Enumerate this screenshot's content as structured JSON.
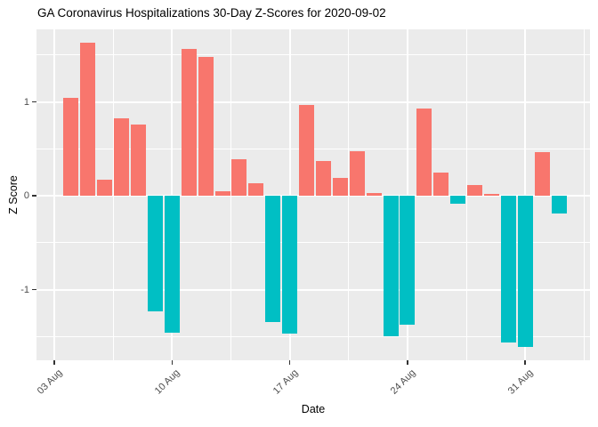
{
  "header": {
    "title": "GA Coronavirus Hospitalizations 30-Day Z-Scores for 2020-09-02"
  },
  "chart_data": {
    "type": "bar",
    "title": "GA Coronavirus Hospitalizations 30-Day Z-Scores for 2020-09-02",
    "xlabel": "Date",
    "ylabel": "Z Score",
    "x": [
      "2020-08-04",
      "2020-08-05",
      "2020-08-06",
      "2020-08-07",
      "2020-08-08",
      "2020-08-09",
      "2020-08-10",
      "2020-08-11",
      "2020-08-12",
      "2020-08-13",
      "2020-08-14",
      "2020-08-15",
      "2020-08-16",
      "2020-08-17",
      "2020-08-18",
      "2020-08-19",
      "2020-08-20",
      "2020-08-21",
      "2020-08-22",
      "2020-08-23",
      "2020-08-24",
      "2020-08-25",
      "2020-08-26",
      "2020-08-27",
      "2020-08-28",
      "2020-08-29",
      "2020-08-30",
      "2020-08-31",
      "2020-09-01",
      "2020-09-02"
    ],
    "values": [
      1.04,
      1.63,
      0.17,
      0.82,
      0.76,
      -1.23,
      -1.46,
      1.56,
      1.48,
      0.05,
      0.39,
      0.13,
      -1.35,
      -1.47,
      0.97,
      0.37,
      0.19,
      0.47,
      0.03,
      -1.5,
      -1.37,
      0.93,
      0.25,
      -0.09,
      0.11,
      0.02,
      -1.56,
      -1.61,
      0.46,
      -0.19
    ],
    "x_tick_labels": [
      "03 Aug",
      "10 Aug",
      "17 Aug",
      "24 Aug",
      "31 Aug"
    ],
    "x_tick_dates": [
      "2020-08-03",
      "2020-08-10",
      "2020-08-17",
      "2020-08-24",
      "2020-08-31"
    ],
    "y_tick_values": [
      -1,
      0,
      1
    ],
    "y_tick_labels": [
      "-1",
      "0",
      "1"
    ],
    "ylim": [
      -1.75,
      1.77
    ],
    "grid": "major and minor, white on gray panel",
    "legend": "none",
    "colors": {
      "positive": "#F8766D",
      "negative": "#00BFC4",
      "panel_background": "#EBEBEB",
      "gridline": "#FFFFFF",
      "axis_text": "#4D4D4D",
      "title_text": "#000000"
    }
  }
}
